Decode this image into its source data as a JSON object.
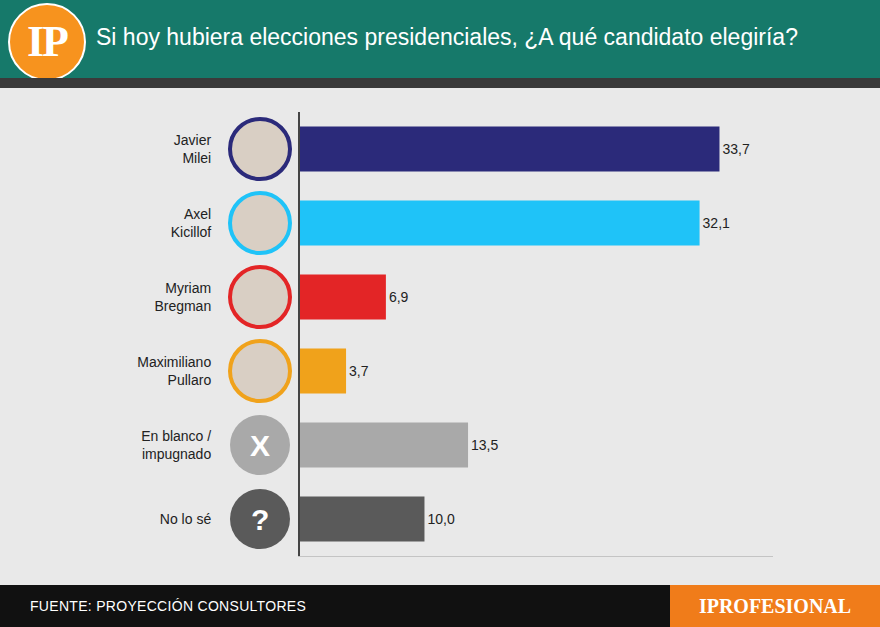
{
  "header": {
    "logo": "IP"
  },
  "chart_data": {
    "type": "bar",
    "orientation": "horizontal",
    "title": "Si hoy hubiera elecciones presidenciales, ¿A qué candidato elegiría?",
    "categories": [
      "Javier Milei",
      "Axel Kicillof",
      "Myriam Bregman",
      "Maximiliano Pullaro",
      "En blanco / impugnado",
      "No lo sé"
    ],
    "values": [
      33.7,
      32.1,
      6.9,
      3.7,
      13.5,
      10.0
    ],
    "value_labels": [
      "33,7",
      "32,1",
      "6,9",
      "3,7",
      "13,5",
      "10,0"
    ],
    "colors": [
      "#2b2a7a",
      "#1fc3f8",
      "#e32526",
      "#f0a21b",
      "#a9a9a9",
      "#5a5a5a"
    ],
    "icons": [
      null,
      null,
      null,
      null,
      "X",
      "?"
    ],
    "xlim": [
      0,
      38
    ],
    "data_labels": true,
    "tick_labels": "y",
    "grid": false
  },
  "footer": {
    "source": "FUENTE: PROYECCIÓN CONSULTORES",
    "brand": "IPROFESIONAL"
  }
}
